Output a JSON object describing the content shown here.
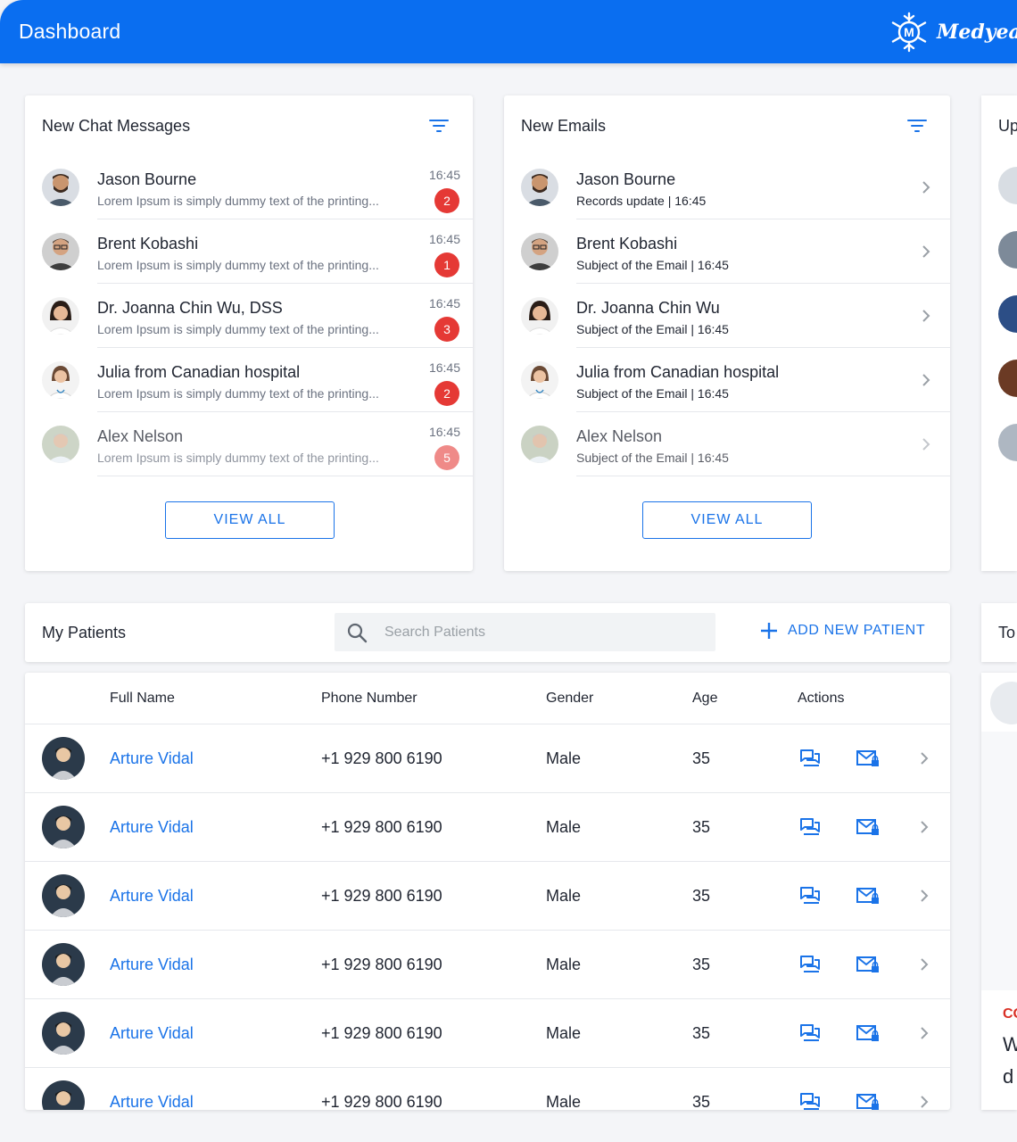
{
  "header": {
    "title": "Dashboard",
    "brand": "Medyear",
    "logo_letter": "M"
  },
  "chat": {
    "title": "New Chat Messages",
    "view_all": "VIEW ALL",
    "items": [
      {
        "name": "Jason Bourne",
        "preview": "Lorem Ipsum is simply dummy text of the printing...",
        "time": "16:45",
        "count": "2"
      },
      {
        "name": "Brent Kobashi",
        "preview": "Lorem Ipsum is simply dummy text of the printing...",
        "time": "16:45",
        "count": "1"
      },
      {
        "name": "Dr. Joanna Chin Wu, DSS",
        "preview": "Lorem Ipsum is simply dummy text of the printing...",
        "time": "16:45",
        "count": "3"
      },
      {
        "name": "Julia from Canadian hospital",
        "preview": "Lorem Ipsum is simply dummy text of the printing...",
        "time": "16:45",
        "count": "2"
      },
      {
        "name": "Alex Nelson",
        "preview": "Lorem Ipsum is simply dummy text of the printing...",
        "time": "16:45",
        "count": "5"
      }
    ]
  },
  "emails": {
    "title": "New Emails",
    "view_all": "VIEW ALL",
    "items": [
      {
        "name": "Jason Bourne",
        "subject": "Records update | 16:45"
      },
      {
        "name": "Brent Kobashi",
        "subject": "Subject of the Email | 16:45"
      },
      {
        "name": "Dr. Joanna Chin Wu",
        "subject": "Subject of the Email | 16:45"
      },
      {
        "name": "Julia from Canadian hospital",
        "subject": "Subject of the Email | 16:45"
      },
      {
        "name": "Alex Nelson",
        "subject": "Subject of the Email | 16:45"
      }
    ]
  },
  "upcoming": {
    "title_partial": "Up"
  },
  "todo": {
    "title_partial": "To",
    "label_partial": "CO",
    "line1_partial": "W",
    "line2_partial": "d"
  },
  "patients": {
    "title": "My Patients",
    "search_placeholder": "Search Patients",
    "add_label": "ADD NEW PATIENT",
    "columns": {
      "name": "Full Name",
      "phone": "Phone Number",
      "gender": "Gender",
      "age": "Age",
      "actions": "Actions"
    },
    "rows": [
      {
        "name": "Arture Vidal",
        "phone": "+1 929 800 6190",
        "gender": "Male",
        "age": "35"
      },
      {
        "name": "Arture Vidal",
        "phone": "+1 929 800 6190",
        "gender": "Male",
        "age": "35"
      },
      {
        "name": "Arture Vidal",
        "phone": "+1 929 800 6190",
        "gender": "Male",
        "age": "35"
      },
      {
        "name": "Arture Vidal",
        "phone": "+1 929 800 6190",
        "gender": "Male",
        "age": "35"
      },
      {
        "name": "Arture Vidal",
        "phone": "+1 929 800 6190",
        "gender": "Male",
        "age": "35"
      },
      {
        "name": "Arture Vidal",
        "phone": "+1 929 800 6190",
        "gender": "Male",
        "age": "35"
      }
    ]
  },
  "colors": {
    "primary": "#0a6ef0",
    "link": "#1a73e8",
    "badge": "#e53935",
    "background": "#f4f5f8"
  },
  "icons": {
    "filter": "filter-icon",
    "chevron": "chevron-right-icon",
    "chat": "chat-icon",
    "mail": "mail-lock-icon",
    "search": "search-icon",
    "plus": "plus-icon"
  }
}
